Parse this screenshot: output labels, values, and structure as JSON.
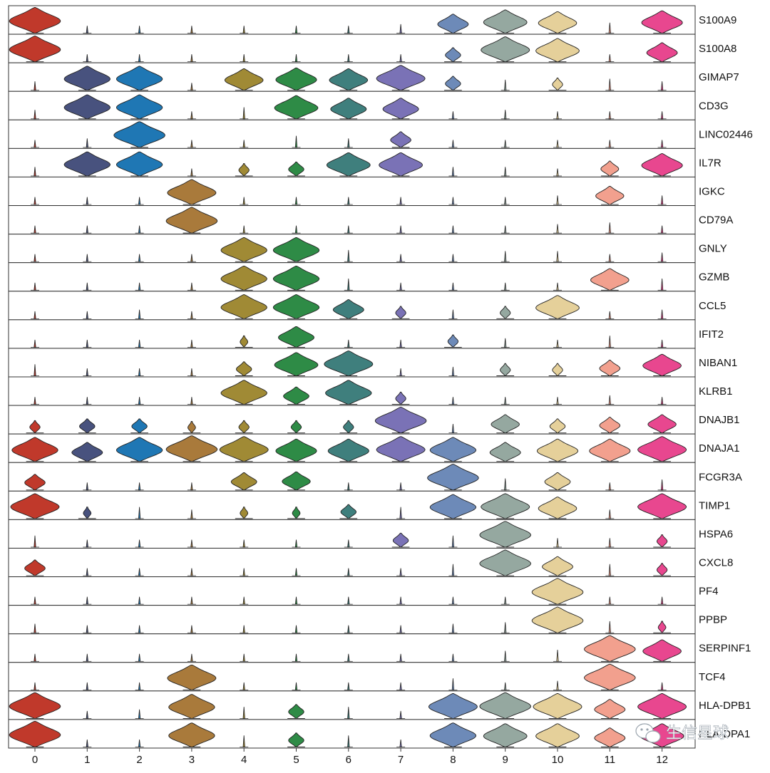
{
  "chart_data": {
    "type": "stacked-violin",
    "title": "",
    "xlabel": "",
    "ylabel": "",
    "clusters": [
      "0",
      "1",
      "2",
      "3",
      "4",
      "5",
      "6",
      "7",
      "8",
      "9",
      "10",
      "11",
      "12"
    ],
    "cluster_colors": [
      "#c0392b",
      "#48527e",
      "#1f77b4",
      "#a97a3b",
      "#a08a35",
      "#2e8b46",
      "#3f7f7d",
      "#7a72b6",
      "#6d8ab8",
      "#95a8a0",
      "#e5d09a",
      "#f2a08e",
      "#e8478f"
    ],
    "genes": [
      "S100A9",
      "S100A8",
      "GIMAP7",
      "CD3G",
      "LINC02446",
      "IL7R",
      "IGKC",
      "CD79A",
      "GNLY",
      "GZMB",
      "CCL5",
      "IFIT2",
      "NIBAN1",
      "KLRB1",
      "DNAJB1",
      "DNAJA1",
      "FCGR3A",
      "TIMP1",
      "HSPA6",
      "CXCL8",
      "PF4",
      "PPBP",
      "SERPINF1",
      "TCF4",
      "HLA-DPB1",
      "HLA-DPA1"
    ],
    "expression": [
      [
        1.0,
        0.02,
        0.02,
        0.02,
        0.02,
        0.02,
        0.02,
        0.05,
        0.6,
        0.85,
        0.75,
        0.08,
        0.8
      ],
      [
        1.0,
        0.02,
        0.02,
        0.02,
        0.02,
        0.02,
        0.02,
        0.02,
        0.3,
        0.95,
        0.85,
        0.02,
        0.6
      ],
      [
        0.05,
        0.9,
        0.9,
        0.02,
        0.75,
        0.8,
        0.75,
        0.95,
        0.3,
        0.08,
        0.2,
        0.1,
        0.05
      ],
      [
        0.05,
        0.9,
        0.9,
        0.02,
        0.1,
        0.85,
        0.7,
        0.7,
        0.02,
        0.05,
        0.02,
        0.02,
        0.02
      ],
      [
        0.02,
        0.05,
        1.0,
        0.02,
        0.02,
        0.1,
        0.05,
        0.4,
        0.02,
        0.02,
        0.02,
        0.02,
        0.02
      ],
      [
        0.05,
        0.9,
        0.9,
        0.02,
        0.2,
        0.3,
        0.85,
        0.85,
        0.05,
        0.05,
        0.02,
        0.35,
        0.8
      ],
      [
        0.02,
        0.02,
        0.02,
        0.95,
        0.02,
        0.02,
        0.02,
        0.02,
        0.02,
        0.02,
        0.05,
        0.55,
        0.05
      ],
      [
        0.02,
        0.02,
        0.02,
        1.0,
        0.02,
        0.02,
        0.02,
        0.02,
        0.02,
        0.02,
        0.05,
        0.08,
        0.02
      ],
      [
        0.02,
        0.02,
        0.02,
        0.02,
        0.9,
        0.9,
        0.1,
        0.02,
        0.02,
        0.08,
        0.08,
        0.02,
        0.05
      ],
      [
        0.02,
        0.02,
        0.02,
        0.02,
        0.9,
        0.9,
        0.1,
        0.02,
        0.02,
        0.02,
        0.02,
        0.75,
        0.1
      ],
      [
        0.02,
        0.02,
        0.05,
        0.02,
        0.9,
        0.9,
        0.6,
        0.2,
        0.05,
        0.2,
        0.85,
        0.02,
        0.05
      ],
      [
        0.02,
        0.02,
        0.02,
        0.02,
        0.15,
        0.7,
        0.02,
        0.02,
        0.2,
        0.05,
        0.02,
        0.1,
        0.02
      ],
      [
        0.1,
        0.02,
        0.02,
        0.02,
        0.3,
        0.85,
        0.95,
        0.02,
        0.05,
        0.2,
        0.2,
        0.4,
        0.75
      ],
      [
        0.02,
        0.02,
        0.02,
        0.02,
        0.9,
        0.5,
        0.9,
        0.2,
        0.02,
        0.02,
        0.02,
        0.05,
        0.02
      ],
      [
        0.2,
        0.3,
        0.3,
        0.15,
        0.2,
        0.2,
        0.2,
        1.0,
        0.05,
        0.55,
        0.3,
        0.4,
        0.55
      ],
      [
        0.9,
        0.6,
        0.9,
        1.0,
        0.95,
        0.8,
        0.8,
        0.95,
        0.9,
        0.6,
        0.8,
        0.8,
        0.95
      ],
      [
        0.4,
        0.02,
        0.02,
        0.02,
        0.5,
        0.55,
        0.02,
        0.02,
        1.0,
        0.1,
        0.5,
        0.02,
        0.08
      ],
      [
        0.95,
        0.15,
        0.1,
        0.05,
        0.15,
        0.15,
        0.3,
        0.1,
        0.9,
        0.95,
        0.75,
        0.05,
        0.95
      ],
      [
        0.1,
        0.02,
        0.02,
        0.02,
        0.02,
        0.02,
        0.02,
        0.3,
        0.1,
        1.0,
        0.05,
        0.05,
        0.2
      ],
      [
        0.4,
        0.02,
        0.02,
        0.02,
        0.02,
        0.02,
        0.02,
        0.02,
        0.1,
        1.0,
        0.6,
        0.1,
        0.2
      ],
      [
        0.02,
        0.02,
        0.02,
        0.02,
        0.02,
        0.02,
        0.02,
        0.02,
        0.02,
        0.02,
        1.0,
        0.02,
        0.02
      ],
      [
        0.05,
        0.02,
        0.02,
        0.02,
        0.02,
        0.02,
        0.02,
        0.02,
        0.05,
        0.08,
        1.0,
        0.1,
        0.15
      ],
      [
        0.02,
        0.02,
        0.02,
        0.02,
        0.02,
        0.02,
        0.02,
        0.02,
        0.02,
        0.08,
        0.1,
        1.0,
        0.75
      ],
      [
        0.02,
        0.02,
        0.02,
        0.95,
        0.02,
        0.02,
        0.02,
        0.02,
        0.1,
        0.02,
        0.05,
        1.0,
        0.02
      ],
      [
        1.0,
        0.02,
        0.05,
        0.9,
        0.1,
        0.3,
        0.1,
        0.02,
        0.95,
        1.0,
        0.95,
        0.6,
        0.95
      ],
      [
        1.0,
        0.02,
        0.02,
        0.9,
        0.1,
        0.3,
        0.1,
        0.02,
        0.9,
        0.85,
        0.85,
        0.6,
        0.85
      ]
    ]
  },
  "watermark": {
    "text": "生信星球",
    "icon": "wechat-icon"
  }
}
